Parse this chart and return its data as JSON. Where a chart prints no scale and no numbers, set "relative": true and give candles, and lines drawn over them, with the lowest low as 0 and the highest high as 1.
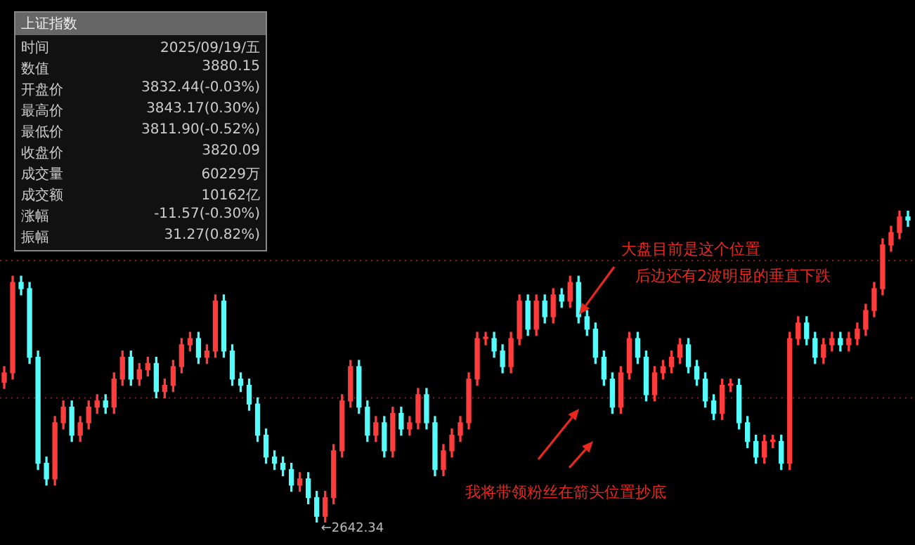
{
  "chart_data": [
    {
      "type": "candlestick",
      "relative": true,
      "categories": [
        null,
        null,
        null,
        null,
        null,
        null,
        null,
        null,
        null,
        null,
        null,
        null,
        null,
        null,
        null,
        null,
        null,
        null,
        null,
        null,
        null,
        null,
        null,
        null,
        null,
        null,
        null,
        null,
        null,
        null,
        null,
        null,
        null,
        null,
        null,
        null,
        null,
        null,
        null,
        null,
        null,
        null,
        null,
        null,
        null,
        null,
        null,
        null,
        null,
        null,
        null,
        null,
        null,
        null,
        null,
        null,
        null,
        null,
        null,
        null,
        null,
        null,
        null,
        null,
        null,
        null,
        null,
        null,
        null,
        null,
        null,
        null,
        null,
        null,
        null,
        null,
        null,
        null,
        null,
        null,
        null,
        null,
        null,
        null,
        null,
        null,
        null,
        null,
        null,
        null,
        null,
        null,
        null,
        null,
        null,
        null,
        null,
        null,
        null,
        null,
        null,
        null,
        null,
        null,
        null,
        null,
        null,
        null
      ],
      "ohlc": [
        [
          0.45,
          0.5,
          0.43,
          0.48
        ],
        [
          0.48,
          0.79,
          0.46,
          0.77
        ],
        [
          0.77,
          0.79,
          0.73,
          0.75
        ],
        [
          0.75,
          0.77,
          0.51,
          0.53
        ],
        [
          0.53,
          0.55,
          0.17,
          0.19
        ],
        [
          0.19,
          0.21,
          0.12,
          0.14
        ],
        [
          0.14,
          0.34,
          0.12,
          0.32
        ],
        [
          0.32,
          0.39,
          0.3,
          0.37
        ],
        [
          0.37,
          0.39,
          0.26,
          0.28
        ],
        [
          0.28,
          0.34,
          0.26,
          0.32
        ],
        [
          0.32,
          0.39,
          0.3,
          0.37
        ],
        [
          0.37,
          0.41,
          0.35,
          0.39
        ],
        [
          0.39,
          0.41,
          0.35,
          0.37
        ],
        [
          0.37,
          0.48,
          0.35,
          0.46
        ],
        [
          0.46,
          0.55,
          0.44,
          0.53
        ],
        [
          0.53,
          0.55,
          0.44,
          0.46
        ],
        [
          0.46,
          0.51,
          0.44,
          0.49
        ],
        [
          0.49,
          0.53,
          0.47,
          0.51
        ],
        [
          0.51,
          0.53,
          0.4,
          0.42
        ],
        [
          0.42,
          0.46,
          0.4,
          0.44
        ],
        [
          0.44,
          0.52,
          0.42,
          0.5
        ],
        [
          0.5,
          0.59,
          0.48,
          0.57
        ],
        [
          0.57,
          0.61,
          0.55,
          0.59
        ],
        [
          0.59,
          0.61,
          0.51,
          0.53
        ],
        [
          0.53,
          0.57,
          0.51,
          0.55
        ],
        [
          0.55,
          0.73,
          0.53,
          0.71
        ],
        [
          0.71,
          0.73,
          0.53,
          0.55
        ],
        [
          0.55,
          0.57,
          0.44,
          0.46
        ],
        [
          0.46,
          0.48,
          0.42,
          0.44
        ],
        [
          0.44,
          0.46,
          0.36,
          0.38
        ],
        [
          0.38,
          0.4,
          0.26,
          0.28
        ],
        [
          0.28,
          0.3,
          0.19,
          0.21
        ],
        [
          0.21,
          0.23,
          0.17,
          0.19
        ],
        [
          0.19,
          0.21,
          0.15,
          0.17
        ],
        [
          0.17,
          0.19,
          0.1,
          0.12
        ],
        [
          0.12,
          0.16,
          0.1,
          0.14
        ],
        [
          0.14,
          0.16,
          0.06,
          0.08
        ],
        [
          0.08,
          0.1,
          0,
          0.02
        ],
        [
          0.02,
          0.1,
          0,
          0.08
        ],
        [
          0.08,
          0.25,
          0.06,
          0.23
        ],
        [
          0.23,
          0.41,
          0.21,
          0.39
        ],
        [
          0.39,
          0.52,
          0.37,
          0.5
        ],
        [
          0.5,
          0.52,
          0.35,
          0.37
        ],
        [
          0.37,
          0.39,
          0.26,
          0.28
        ],
        [
          0.28,
          0.34,
          0.26,
          0.32
        ],
        [
          0.32,
          0.34,
          0.21,
          0.23
        ],
        [
          0.23,
          0.37,
          0.21,
          0.35
        ],
        [
          0.35,
          0.37,
          0.28,
          0.3
        ],
        [
          0.3,
          0.34,
          0.28,
          0.32
        ],
        [
          0.32,
          0.43,
          0.3,
          0.41
        ],
        [
          0.41,
          0.43,
          0.3,
          0.32
        ],
        [
          0.32,
          0.34,
          0.15,
          0.17
        ],
        [
          0.17,
          0.25,
          0.15,
          0.23
        ],
        [
          0.23,
          0.3,
          0.21,
          0.28
        ],
        [
          0.28,
          0.34,
          0.26,
          0.32
        ],
        [
          0.32,
          0.48,
          0.3,
          0.46
        ],
        [
          0.46,
          0.61,
          0.44,
          0.59
        ],
        [
          0.59,
          0.61,
          0.57,
          0.59
        ],
        [
          0.59,
          0.61,
          0.53,
          0.55
        ],
        [
          0.55,
          0.57,
          0.48,
          0.5
        ],
        [
          0.5,
          0.61,
          0.48,
          0.59
        ],
        [
          0.59,
          0.73,
          0.57,
          0.71
        ],
        [
          0.71,
          0.73,
          0.6,
          0.62
        ],
        [
          0.62,
          0.73,
          0.6,
          0.71
        ],
        [
          0.71,
          0.73,
          0.64,
          0.66
        ],
        [
          0.66,
          0.75,
          0.64,
          0.73
        ],
        [
          0.73,
          0.75,
          0.69,
          0.71
        ],
        [
          0.71,
          0.79,
          0.69,
          0.77
        ],
        [
          0.77,
          0.79,
          0.64,
          0.66
        ],
        [
          0.66,
          0.68,
          0.6,
          0.62
        ],
        [
          0.62,
          0.64,
          0.51,
          0.53
        ],
        [
          0.53,
          0.55,
          0.44,
          0.46
        ],
        [
          0.46,
          0.48,
          0.35,
          0.37
        ],
        [
          0.37,
          0.5,
          0.35,
          0.48
        ],
        [
          0.48,
          0.61,
          0.46,
          0.59
        ],
        [
          0.59,
          0.61,
          0.51,
          0.53
        ],
        [
          0.53,
          0.55,
          0.39,
          0.41
        ],
        [
          0.41,
          0.5,
          0.39,
          0.48
        ],
        [
          0.48,
          0.52,
          0.46,
          0.5
        ],
        [
          0.5,
          0.55,
          0.48,
          0.53
        ],
        [
          0.53,
          0.59,
          0.51,
          0.57
        ],
        [
          0.57,
          0.59,
          0.48,
          0.5
        ],
        [
          0.5,
          0.52,
          0.44,
          0.46
        ],
        [
          0.46,
          0.48,
          0.37,
          0.39
        ],
        [
          0.39,
          0.41,
          0.33,
          0.35
        ],
        [
          0.35,
          0.46,
          0.33,
          0.44
        ],
        [
          0.44,
          0.46,
          0.42,
          0.44
        ],
        [
          0.44,
          0.46,
          0.3,
          0.32
        ],
        [
          0.32,
          0.34,
          0.24,
          0.26
        ],
        [
          0.26,
          0.28,
          0.19,
          0.21
        ],
        [
          0.21,
          0.28,
          0.19,
          0.26
        ],
        [
          0.26,
          0.28,
          0.24,
          0.26
        ],
        [
          0.26,
          0.28,
          0.17,
          0.19
        ],
        [
          0.19,
          0.61,
          0.17,
          0.59
        ],
        [
          0.59,
          0.66,
          0.57,
          0.64
        ],
        [
          0.64,
          0.66,
          0.57,
          0.59
        ],
        [
          0.59,
          0.61,
          0.51,
          0.53
        ],
        [
          0.53,
          0.59,
          0.51,
          0.57
        ],
        [
          0.57,
          0.61,
          0.55,
          0.59
        ],
        [
          0.59,
          0.61,
          0.55,
          0.57
        ],
        [
          0.57,
          0.61,
          0.55,
          0.59
        ],
        [
          0.59,
          0.64,
          0.57,
          0.62
        ],
        [
          0.62,
          0.7,
          0.6,
          0.68
        ],
        [
          0.68,
          0.77,
          0.66,
          0.75
        ],
        [
          0.75,
          0.91,
          0.73,
          0.89
        ],
        [
          0.89,
          0.95,
          0.87,
          0.93
        ],
        [
          0.93,
          1,
          0.91,
          0.98
        ],
        [
          0.98,
          1,
          0.95,
          0.97
        ]
      ],
      "ref_lines": [
        {
          "axis": "y",
          "value": 0.84,
          "color": "#8b1a1a",
          "line_style": "dotted"
        },
        {
          "axis": "y",
          "value": 0.4,
          "color": "#8b1a1a",
          "line_style": "dotted"
        }
      ],
      "annotations": [
        "大盘目前是这个位置",
        "后边还有2波明显的垂直下跌",
        "我将带领粉丝在箭头位置抄底",
        "←2642.34"
      ]
    },
    {
      "type": "other",
      "title": "上证指数",
      "annotations": [
        "时间",
        "2025/09/19/五",
        "数值",
        "3880.15",
        "开盘价",
        "3832.44(-0.03%)",
        "最高价",
        "3843.17(0.30%)",
        "最低价",
        "3811.90(-0.52%)",
        "收盘价",
        "3820.09",
        "成交量",
        "60229万",
        "成交额",
        "10162亿",
        "涨幅",
        "-11.57(-0.30%)",
        "振幅",
        "31.27(0.82%)"
      ]
    }
  ]
}
